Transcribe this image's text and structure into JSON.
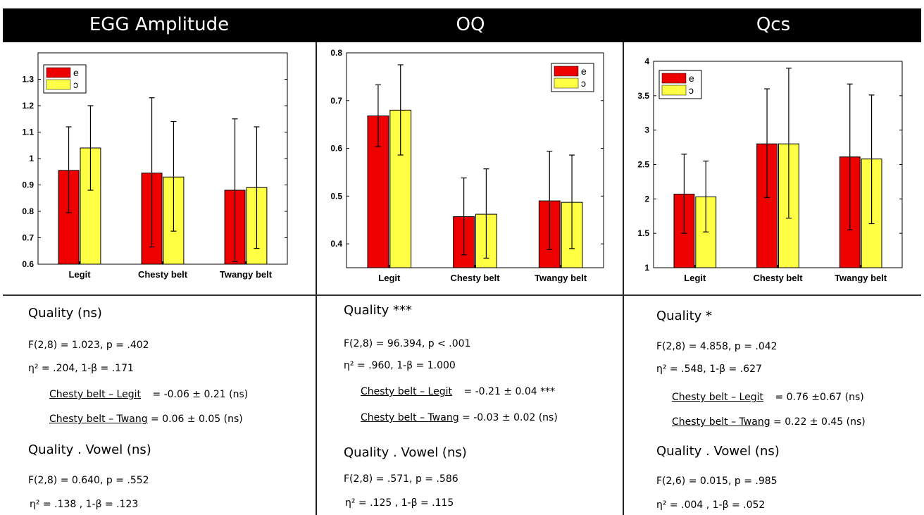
{
  "panels": [
    {
      "title": "EGG Amplitude",
      "stats": {
        "quality_head": "Quality (ns)",
        "f1": "F(2,8) = 1.023, p = .402",
        "eta1": "η² = .204, 1-β = .171",
        "cmp1_label": "Chesty belt – Legit",
        "cmp1_value": "= -0.06 ± 0.21 (ns)",
        "cmp2_label": "Chesty belt – Twang",
        "cmp2_value": "= 0.06 ± 0.05 (ns)",
        "vowel_head": "Quality . Vowel (ns)",
        "f2": "F(2,8) = 0.640, p = .552",
        "eta2": "η² = .138 , 1-β = .123"
      }
    },
    {
      "title": "OQ",
      "stats": {
        "quality_head": "Quality ***",
        "f1": "F(2,8) = 96.394, p < .001",
        "eta1": "η² = .960, 1-β = 1.000",
        "cmp1_label": "Chesty belt – Legit",
        "cmp1_value": "= -0.21 ± 0.04 ***",
        "cmp2_label": "Chesty belt – Twang",
        "cmp2_value": "= -0.03 ± 0.02 (ns)",
        "vowel_head": "Quality . Vowel (ns)",
        "f2": "F(2,8) = .571, p = .586",
        "eta2": "η² = .125 , 1-β = .115"
      }
    },
    {
      "title": "Qcs",
      "stats": {
        "quality_head": "Quality *",
        "f1": "F(2,8) = 4.858, p = .042",
        "eta1": "η² = .548, 1-β = .627",
        "cmp1_label": "Chesty belt – Legit",
        "cmp1_value": "= 0.76 ±0.67 (ns)",
        "cmp2_label": "Chesty belt – Twang",
        "cmp2_value": "= 0.22 ± 0.45 (ns)",
        "vowel_head": "Quality . Vowel (ns)",
        "f2": "F(2,6) = 0.015, p = .985",
        "eta2": "η² = .004 , 1-β = .052"
      }
    }
  ],
  "colors": {
    "e": "#ee0000",
    "o": "#ffff44",
    "header_bg": "#000000"
  },
  "chart_data": [
    {
      "type": "bar",
      "title": "EGG Amplitude",
      "categories": [
        "Legit",
        "Chesty belt",
        "Twangy belt"
      ],
      "ylim": [
        0.6,
        1.4
      ],
      "yticks": [
        0.6,
        0.7,
        0.8,
        0.9,
        1,
        1.1,
        1.2,
        1.3
      ],
      "ytick_labels": [
        "0.6",
        "0.7",
        "0.8",
        "0.9",
        "1",
        "1.1",
        "1.2",
        "1.3"
      ],
      "legend_position": "top-left",
      "series": [
        {
          "name": "e",
          "values": [
            0.955,
            0.945,
            0.88
          ],
          "err_low": [
            0.795,
            0.665,
            0.61
          ],
          "err_high": [
            1.12,
            1.23,
            1.15
          ]
        },
        {
          "name": "ɔ",
          "values": [
            1.04,
            0.93,
            0.89
          ],
          "err_low": [
            0.88,
            0.725,
            0.66
          ],
          "err_high": [
            1.2,
            1.14,
            1.12
          ]
        }
      ]
    },
    {
      "type": "bar",
      "title": "OQ",
      "categories": [
        "Legit",
        "Chesty belt",
        "Twangy belt"
      ],
      "ylim": [
        0.35,
        0.8
      ],
      "yticks": [
        0.4,
        0.5,
        0.6,
        0.7,
        0.8
      ],
      "ytick_labels": [
        "0.4",
        "0.5",
        "0.6",
        "0.7",
        "0.8"
      ],
      "legend_position": "top-right",
      "series": [
        {
          "name": "e",
          "values": [
            0.668,
            0.457,
            0.49
          ],
          "err_low": [
            0.604,
            0.377,
            0.388
          ],
          "err_high": [
            0.733,
            0.538,
            0.594
          ]
        },
        {
          "name": "ɔ",
          "values": [
            0.68,
            0.462,
            0.487
          ],
          "err_low": [
            0.586,
            0.37,
            0.39
          ],
          "err_high": [
            0.775,
            0.557,
            0.586
          ]
        }
      ]
    },
    {
      "type": "bar",
      "title": "Qcs",
      "categories": [
        "Legit",
        "Chesty belt",
        "Twangy belt"
      ],
      "ylim": [
        1,
        4
      ],
      "yticks": [
        1,
        1.5,
        2,
        2.5,
        3,
        3.5,
        4
      ],
      "ytick_labels": [
        "1",
        "1.5",
        "2",
        "2.5",
        "3",
        "3.5",
        "4"
      ],
      "legend_position": "top-left",
      "series": [
        {
          "name": "e",
          "values": [
            2.07,
            2.8,
            2.61
          ],
          "err_low": [
            1.5,
            2.02,
            1.55
          ],
          "err_high": [
            2.65,
            3.6,
            3.67
          ]
        },
        {
          "name": "ɔ",
          "values": [
            2.03,
            2.8,
            2.58
          ],
          "err_low": [
            1.52,
            1.72,
            1.64
          ],
          "err_high": [
            2.55,
            3.9,
            3.51
          ]
        }
      ]
    }
  ]
}
